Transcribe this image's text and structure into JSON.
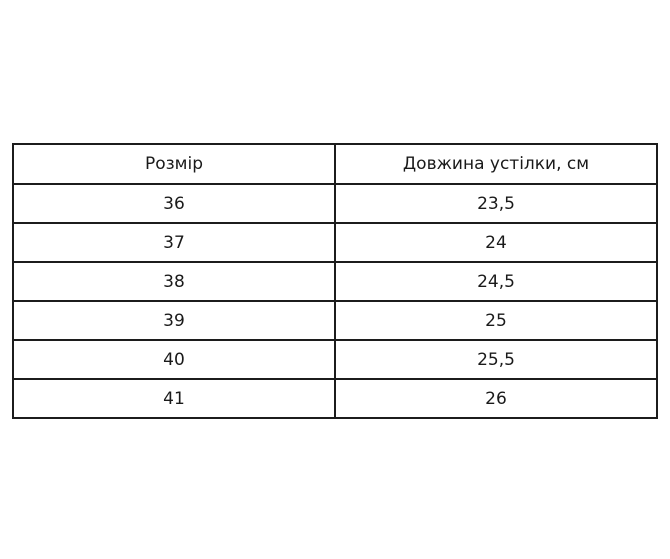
{
  "page": {
    "background_color": "#ffffff"
  },
  "table": {
    "border_color": "#1c1c1c",
    "text_color": "#1a1a1a",
    "headers": {
      "size": "Розмір",
      "length": "Довжина устілки, см"
    },
    "rows": [
      {
        "size": "36",
        "length_cm": "23,5"
      },
      {
        "size": "37",
        "length_cm": "24"
      },
      {
        "size": "38",
        "length_cm": "24,5"
      },
      {
        "size": "39",
        "length_cm": "25"
      },
      {
        "size": "40",
        "length_cm": "25,5"
      },
      {
        "size": "41",
        "length_cm": "26"
      }
    ]
  }
}
